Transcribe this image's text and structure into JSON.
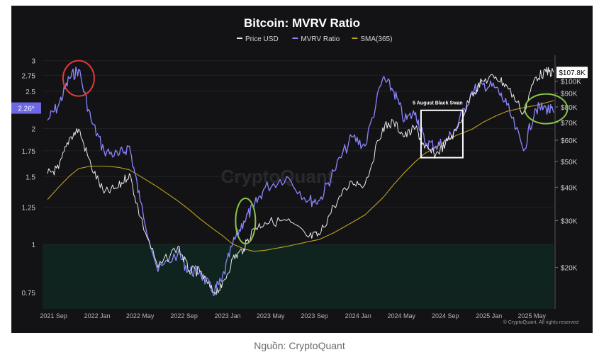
{
  "caption": "Nguồn: CryptoQuant",
  "chart_data": {
    "type": "line",
    "title": "Bitcoin: MVRV Ratio",
    "legend": [
      "Price USD",
      "MVRV Ratio",
      "SMA(365)"
    ],
    "legend_position": "top-center",
    "colors": {
      "price": "#e9e9e9",
      "mvrv": "#8b86ff",
      "sma": "#bfa11b",
      "badge": "#6f68e6",
      "zone": "#10241f",
      "zone_line": "#3f7a3a",
      "red_circle": "#e53935",
      "green_circle": "#8bc34a",
      "box": "#ffffff"
    },
    "x_axis": {
      "start": "2021-08",
      "end": "2025-07",
      "ticks": [
        "2021 Sep",
        "2022 Jan",
        "2022 May",
        "2022 Sep",
        "2023 Jan",
        "2023 May",
        "2023 Sep",
        "2024 Jan",
        "2024 May",
        "2024 Sep",
        "2025 Jan",
        "2025 May"
      ]
    },
    "y_left": {
      "scale": "log",
      "range": [
        0.68,
        3.1
      ],
      "ticks": [
        3,
        2.75,
        2.5,
        2,
        1.75,
        1.5,
        1.25,
        1,
        0.75
      ]
    },
    "y_right": {
      "scale": "log",
      "range": [
        14000,
        125000
      ],
      "ticks": [
        "$100K",
        "$90K",
        "$80K",
        "$70K",
        "$60K",
        "$50K",
        "$40K",
        "$30K",
        "$20K"
      ],
      "tick_values": [
        100000,
        90000,
        80000,
        70000,
        60000,
        50000,
        40000,
        30000,
        20000
      ]
    },
    "current_mvrv_label": "2.26*",
    "current_price_label": "$107.8K",
    "annotation": "5 August Black Swan",
    "watermark": "CryptoQuant",
    "credit": "© CryptoQuant. All rights reserved",
    "undervalued_zone_below": 1,
    "dates": [
      "2021-08-15",
      "2021-09-15",
      "2021-10-15",
      "2021-11-10",
      "2021-12-15",
      "2022-01-20",
      "2022-03-01",
      "2022-04-01",
      "2022-05-01",
      "2022-06-20",
      "2022-08-15",
      "2022-09-15",
      "2022-10-15",
      "2022-11-20",
      "2022-12-15",
      "2023-01-15",
      "2023-02-15",
      "2023-03-15",
      "2023-04-15",
      "2023-06-15",
      "2023-08-15",
      "2023-09-15",
      "2023-10-25",
      "2023-12-15",
      "2024-01-20",
      "2024-03-10",
      "2024-04-10",
      "2024-05-10",
      "2024-06-10",
      "2024-07-05",
      "2024-08-05",
      "2024-09-01",
      "2024-10-01",
      "2024-11-15",
      "2024-12-15",
      "2025-01-20",
      "2025-02-20",
      "2025-04-08",
      "2025-05-10",
      "2025-06-10",
      "2025-07-01"
    ],
    "series": [
      {
        "name": "Price USD",
        "key": "price",
        "axis": "right",
        "values": [
          45000,
          47000,
          61000,
          66000,
          48000,
          38000,
          40000,
          45000,
          31000,
          20000,
          24000,
          19500,
          19300,
          16200,
          16800,
          21500,
          23500,
          28000,
          29500,
          30000,
          26000,
          26500,
          34000,
          42000,
          41000,
          67000,
          70000,
          62000,
          67000,
          56000,
          53000,
          58000,
          65000,
          90000,
          100000,
          104000,
          96000,
          76000,
          103000,
          108000,
          107800
        ]
      },
      {
        "name": "MVRV Ratio",
        "key": "mvrv",
        "axis": "left",
        "values": [
          2.1,
          2.3,
          2.7,
          2.85,
          2.1,
          1.75,
          1.7,
          1.8,
          1.3,
          0.85,
          0.95,
          0.85,
          0.85,
          0.75,
          0.8,
          1.0,
          1.15,
          1.25,
          1.4,
          1.5,
          1.3,
          1.3,
          1.55,
          1.9,
          1.8,
          2.7,
          2.5,
          2.1,
          2.2,
          1.85,
          1.8,
          1.85,
          2.0,
          2.5,
          2.6,
          2.55,
          2.3,
          1.75,
          2.25,
          2.26,
          2.2
        ]
      },
      {
        "name": "SMA(365)",
        "key": "sma",
        "axis": "right",
        "values": [
          36000,
          40000,
          44000,
          47000,
          48000,
          48000,
          47500,
          46500,
          44000,
          40000,
          35500,
          33000,
          30500,
          28000,
          26500,
          24500,
          23500,
          23000,
          23200,
          24000,
          25000,
          25500,
          27000,
          29500,
          31500,
          36500,
          41000,
          45500,
          50000,
          53500,
          56500,
          59500,
          62500,
          66000,
          70000,
          74000,
          77000,
          79500,
          81000,
          83000,
          84500
        ]
      }
    ]
  }
}
